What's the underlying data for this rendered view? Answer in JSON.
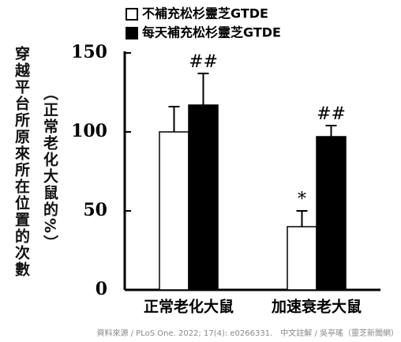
{
  "chart_data": {
    "type": "bar",
    "y_label": "穿越平台所原來所在位置的次數",
    "y_label_sub": "（正常老化大鼠的%）",
    "categories": [
      "正常老化大鼠",
      "加速衰老大鼠"
    ],
    "series": [
      {
        "name": "不補充松杉靈芝GTDE",
        "color": "#ffffff",
        "values": [
          100,
          40
        ],
        "errors": [
          16,
          10
        ],
        "annotations": [
          null,
          "*"
        ]
      },
      {
        "name": "每天補充松杉靈芝GTDE",
        "color": "#000000",
        "values": [
          117,
          97
        ],
        "errors": [
          20,
          7
        ],
        "annotations": [
          "##",
          "##"
        ]
      }
    ],
    "ylim": [
      0,
      150
    ],
    "yticks": [
      0,
      50,
      100,
      150
    ],
    "source": "資料來源 / PLoS One. 2022; 17(4): e0266331.　中文註解 / 吳亭瑤（靈芝新聞網）"
  }
}
